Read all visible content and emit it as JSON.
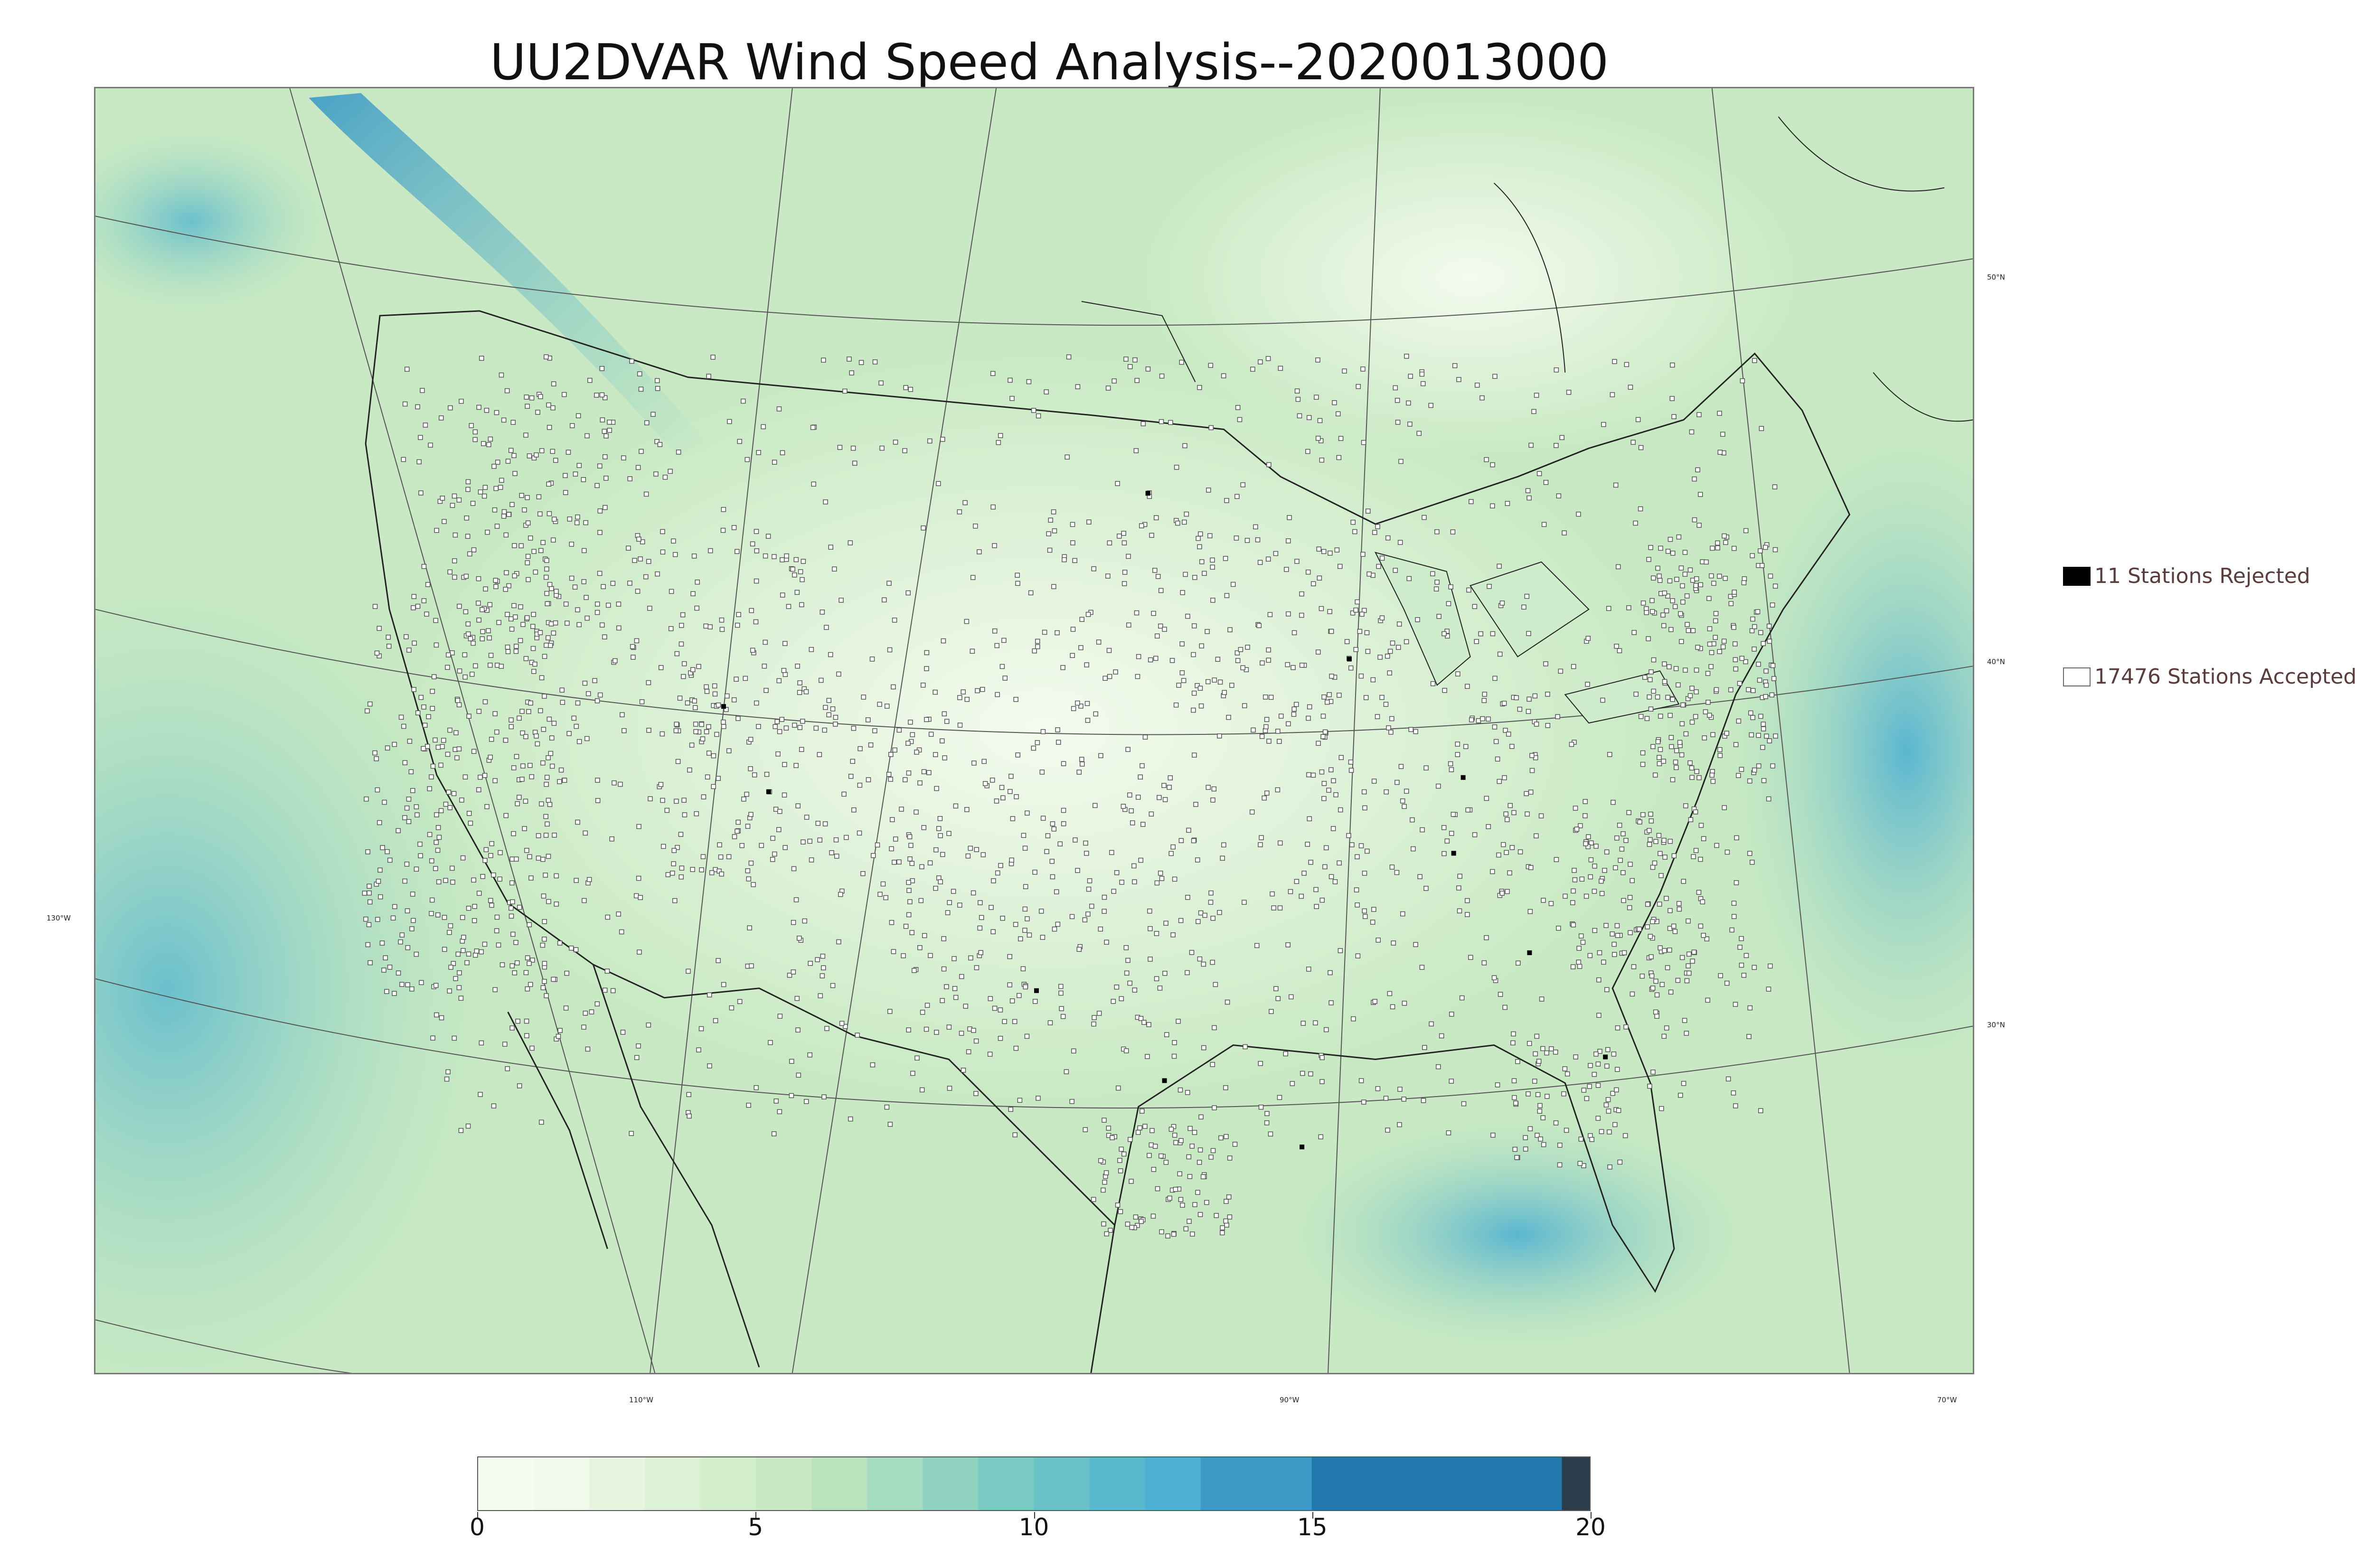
{
  "title": "UU2DVAR Wind Speed Analysis--2020013000",
  "legend": {
    "rejected": "11 Stations Rejected",
    "accepted": "17476 Stations Accepted",
    "rejected_color": "#000000",
    "accepted_color": "#ffffff"
  },
  "latitude_labels": [
    "50°N",
    "40°N",
    "30°N"
  ],
  "longitude_labels": [
    "130°W",
    "110°W",
    "90°W",
    "70°W"
  ],
  "colorbar": {
    "ticks": [
      "0",
      "5",
      "10",
      "15",
      "20"
    ],
    "min": 0,
    "max": 20,
    "bands": [
      {
        "from": 0,
        "to": 1,
        "color": "#f7fcf0"
      },
      {
        "from": 1,
        "to": 2,
        "color": "#f0f9ea"
      },
      {
        "from": 2,
        "to": 3,
        "color": "#e6f5e0"
      },
      {
        "from": 3,
        "to": 4,
        "color": "#dcf1d6"
      },
      {
        "from": 4,
        "to": 5,
        "color": "#d3eecd"
      },
      {
        "from": 5,
        "to": 6,
        "color": "#c8e9c3"
      },
      {
        "from": 6,
        "to": 7,
        "color": "#b8e3bc"
      },
      {
        "from": 7,
        "to": 8,
        "color": "#a5dbbf"
      },
      {
        "from": 8,
        "to": 9,
        "color": "#8fd3c0"
      },
      {
        "from": 9,
        "to": 10,
        "color": "#7bcbc4"
      },
      {
        "from": 10,
        "to": 11,
        "color": "#6ac2c9"
      },
      {
        "from": 11,
        "to": 12,
        "color": "#5ab8cf"
      },
      {
        "from": 12,
        "to": 13,
        "color": "#4eb0d2"
      },
      {
        "from": 13,
        "to": 15,
        "color": "#3c9ac6"
      },
      {
        "from": 15,
        "to": 19.5,
        "color": "#2279b0"
      },
      {
        "from": 19.5,
        "to": 20,
        "color": "#2c3e4c"
      }
    ]
  }
}
